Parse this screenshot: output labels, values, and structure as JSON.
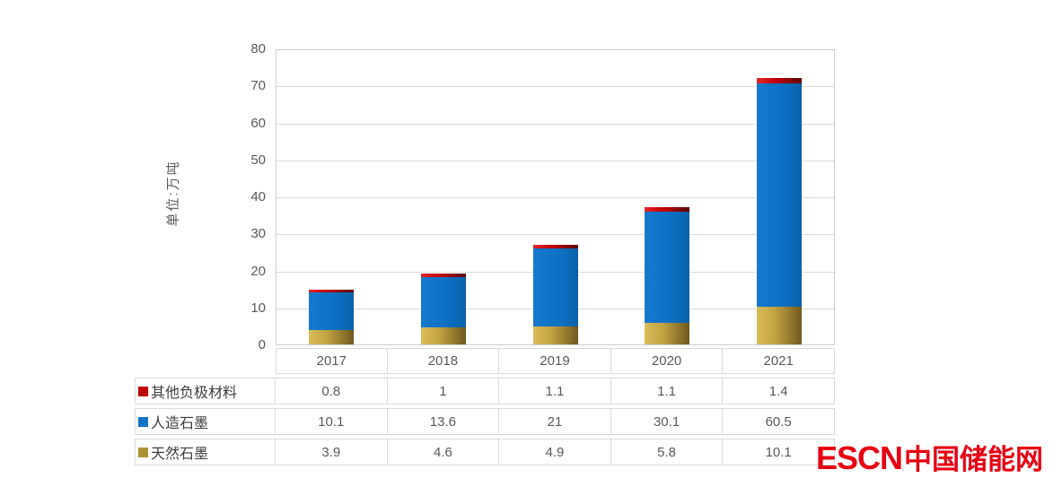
{
  "chart_data": {
    "type": "bar",
    "stacked": true,
    "title": "",
    "ylabel": "单位:万吨",
    "xlabel": "",
    "categories": [
      "2017",
      "2018",
      "2019",
      "2020",
      "2021"
    ],
    "series": [
      {
        "name": "天然石墨",
        "color": "#AD9134",
        "values": [
          3.9,
          4.6,
          4.9,
          5.8,
          10.1
        ]
      },
      {
        "name": "人造石墨",
        "color": "#1274C8",
        "values": [
          10.1,
          13.6,
          21,
          30.1,
          60.5
        ]
      },
      {
        "name": "其他负极材料",
        "color": "#C00000",
        "values": [
          0.8,
          1,
          1.1,
          1.1,
          1.4
        ]
      }
    ],
    "ylim": [
      0,
      80
    ],
    "yticks": [
      0,
      10,
      20,
      30,
      40,
      50,
      60,
      70,
      80
    ],
    "grid": true,
    "legend_position": "data-table-left-column"
  },
  "data_table": {
    "header": [
      "2017",
      "2018",
      "2019",
      "2020",
      "2021"
    ],
    "rows": [
      {
        "label": "其他负极材料",
        "series": "其他负极材料",
        "values": [
          "0.8",
          "1",
          "1.1",
          "1.1",
          "1.4"
        ]
      },
      {
        "label": "人造石墨",
        "series": "人造石墨",
        "values": [
          "10.1",
          "13.6",
          "21",
          "30.1",
          "60.5"
        ]
      },
      {
        "label": "天然石墨",
        "series": "天然石墨",
        "values": [
          "3.9",
          "4.6",
          "4.9",
          "5.8",
          "10.1"
        ]
      }
    ]
  },
  "logo": {
    "text_en": "ESCN",
    "text_zh": "中国储能网",
    "color": "#e60012"
  }
}
